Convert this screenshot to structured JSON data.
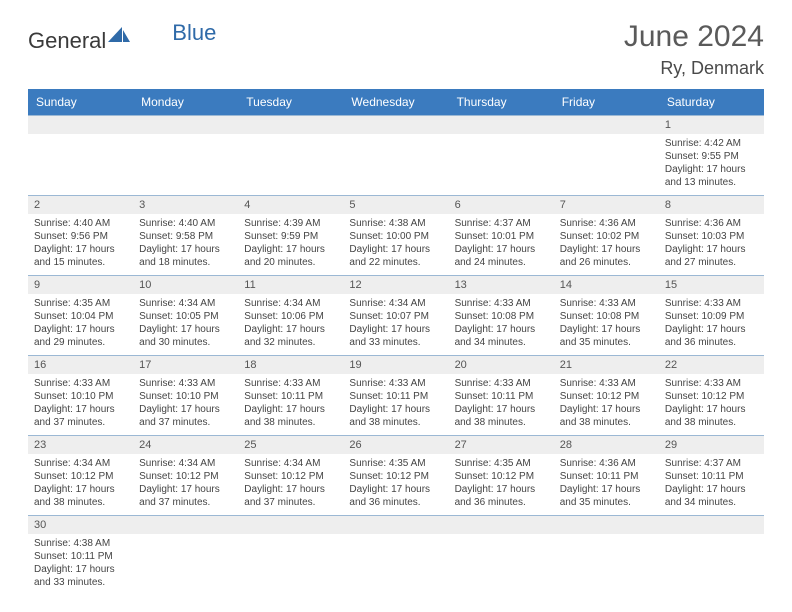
{
  "logo": {
    "text_dark": "General",
    "text_blue": "Blue"
  },
  "header": {
    "month": "June 2024",
    "location": "Ry, Denmark"
  },
  "colors": {
    "header_bg": "#3b7bbf",
    "header_text": "#ffffff",
    "date_bar_bg": "#eeeeee",
    "border": "#9bb8d4",
    "logo_blue": "#2f6aa8",
    "logo_dark": "#3a3a3a"
  },
  "day_names": [
    "Sunday",
    "Monday",
    "Tuesday",
    "Wednesday",
    "Thursday",
    "Friday",
    "Saturday"
  ],
  "weeks": [
    [
      {
        "date": "",
        "lines": []
      },
      {
        "date": "",
        "lines": []
      },
      {
        "date": "",
        "lines": []
      },
      {
        "date": "",
        "lines": []
      },
      {
        "date": "",
        "lines": []
      },
      {
        "date": "",
        "lines": []
      },
      {
        "date": "1",
        "lines": [
          "Sunrise: 4:42 AM",
          "Sunset: 9:55 PM",
          "Daylight: 17 hours and 13 minutes."
        ]
      }
    ],
    [
      {
        "date": "2",
        "lines": [
          "Sunrise: 4:40 AM",
          "Sunset: 9:56 PM",
          "Daylight: 17 hours and 15 minutes."
        ]
      },
      {
        "date": "3",
        "lines": [
          "Sunrise: 4:40 AM",
          "Sunset: 9:58 PM",
          "Daylight: 17 hours and 18 minutes."
        ]
      },
      {
        "date": "4",
        "lines": [
          "Sunrise: 4:39 AM",
          "Sunset: 9:59 PM",
          "Daylight: 17 hours and 20 minutes."
        ]
      },
      {
        "date": "5",
        "lines": [
          "Sunrise: 4:38 AM",
          "Sunset: 10:00 PM",
          "Daylight: 17 hours and 22 minutes."
        ]
      },
      {
        "date": "6",
        "lines": [
          "Sunrise: 4:37 AM",
          "Sunset: 10:01 PM",
          "Daylight: 17 hours and 24 minutes."
        ]
      },
      {
        "date": "7",
        "lines": [
          "Sunrise: 4:36 AM",
          "Sunset: 10:02 PM",
          "Daylight: 17 hours and 26 minutes."
        ]
      },
      {
        "date": "8",
        "lines": [
          "Sunrise: 4:36 AM",
          "Sunset: 10:03 PM",
          "Daylight: 17 hours and 27 minutes."
        ]
      }
    ],
    [
      {
        "date": "9",
        "lines": [
          "Sunrise: 4:35 AM",
          "Sunset: 10:04 PM",
          "Daylight: 17 hours and 29 minutes."
        ]
      },
      {
        "date": "10",
        "lines": [
          "Sunrise: 4:34 AM",
          "Sunset: 10:05 PM",
          "Daylight: 17 hours and 30 minutes."
        ]
      },
      {
        "date": "11",
        "lines": [
          "Sunrise: 4:34 AM",
          "Sunset: 10:06 PM",
          "Daylight: 17 hours and 32 minutes."
        ]
      },
      {
        "date": "12",
        "lines": [
          "Sunrise: 4:34 AM",
          "Sunset: 10:07 PM",
          "Daylight: 17 hours and 33 minutes."
        ]
      },
      {
        "date": "13",
        "lines": [
          "Sunrise: 4:33 AM",
          "Sunset: 10:08 PM",
          "Daylight: 17 hours and 34 minutes."
        ]
      },
      {
        "date": "14",
        "lines": [
          "Sunrise: 4:33 AM",
          "Sunset: 10:08 PM",
          "Daylight: 17 hours and 35 minutes."
        ]
      },
      {
        "date": "15",
        "lines": [
          "Sunrise: 4:33 AM",
          "Sunset: 10:09 PM",
          "Daylight: 17 hours and 36 minutes."
        ]
      }
    ],
    [
      {
        "date": "16",
        "lines": [
          "Sunrise: 4:33 AM",
          "Sunset: 10:10 PM",
          "Daylight: 17 hours and 37 minutes."
        ]
      },
      {
        "date": "17",
        "lines": [
          "Sunrise: 4:33 AM",
          "Sunset: 10:10 PM",
          "Daylight: 17 hours and 37 minutes."
        ]
      },
      {
        "date": "18",
        "lines": [
          "Sunrise: 4:33 AM",
          "Sunset: 10:11 PM",
          "Daylight: 17 hours and 38 minutes."
        ]
      },
      {
        "date": "19",
        "lines": [
          "Sunrise: 4:33 AM",
          "Sunset: 10:11 PM",
          "Daylight: 17 hours and 38 minutes."
        ]
      },
      {
        "date": "20",
        "lines": [
          "Sunrise: 4:33 AM",
          "Sunset: 10:11 PM",
          "Daylight: 17 hours and 38 minutes."
        ]
      },
      {
        "date": "21",
        "lines": [
          "Sunrise: 4:33 AM",
          "Sunset: 10:12 PM",
          "Daylight: 17 hours and 38 minutes."
        ]
      },
      {
        "date": "22",
        "lines": [
          "Sunrise: 4:33 AM",
          "Sunset: 10:12 PM",
          "Daylight: 17 hours and 38 minutes."
        ]
      }
    ],
    [
      {
        "date": "23",
        "lines": [
          "Sunrise: 4:34 AM",
          "Sunset: 10:12 PM",
          "Daylight: 17 hours and 38 minutes."
        ]
      },
      {
        "date": "24",
        "lines": [
          "Sunrise: 4:34 AM",
          "Sunset: 10:12 PM",
          "Daylight: 17 hours and 37 minutes."
        ]
      },
      {
        "date": "25",
        "lines": [
          "Sunrise: 4:34 AM",
          "Sunset: 10:12 PM",
          "Daylight: 17 hours and 37 minutes."
        ]
      },
      {
        "date": "26",
        "lines": [
          "Sunrise: 4:35 AM",
          "Sunset: 10:12 PM",
          "Daylight: 17 hours and 36 minutes."
        ]
      },
      {
        "date": "27",
        "lines": [
          "Sunrise: 4:35 AM",
          "Sunset: 10:12 PM",
          "Daylight: 17 hours and 36 minutes."
        ]
      },
      {
        "date": "28",
        "lines": [
          "Sunrise: 4:36 AM",
          "Sunset: 10:11 PM",
          "Daylight: 17 hours and 35 minutes."
        ]
      },
      {
        "date": "29",
        "lines": [
          "Sunrise: 4:37 AM",
          "Sunset: 10:11 PM",
          "Daylight: 17 hours and 34 minutes."
        ]
      }
    ],
    [
      {
        "date": "30",
        "lines": [
          "Sunrise: 4:38 AM",
          "Sunset: 10:11 PM",
          "Daylight: 17 hours and 33 minutes."
        ]
      },
      {
        "date": "",
        "lines": []
      },
      {
        "date": "",
        "lines": []
      },
      {
        "date": "",
        "lines": []
      },
      {
        "date": "",
        "lines": []
      },
      {
        "date": "",
        "lines": []
      },
      {
        "date": "",
        "lines": []
      }
    ]
  ]
}
